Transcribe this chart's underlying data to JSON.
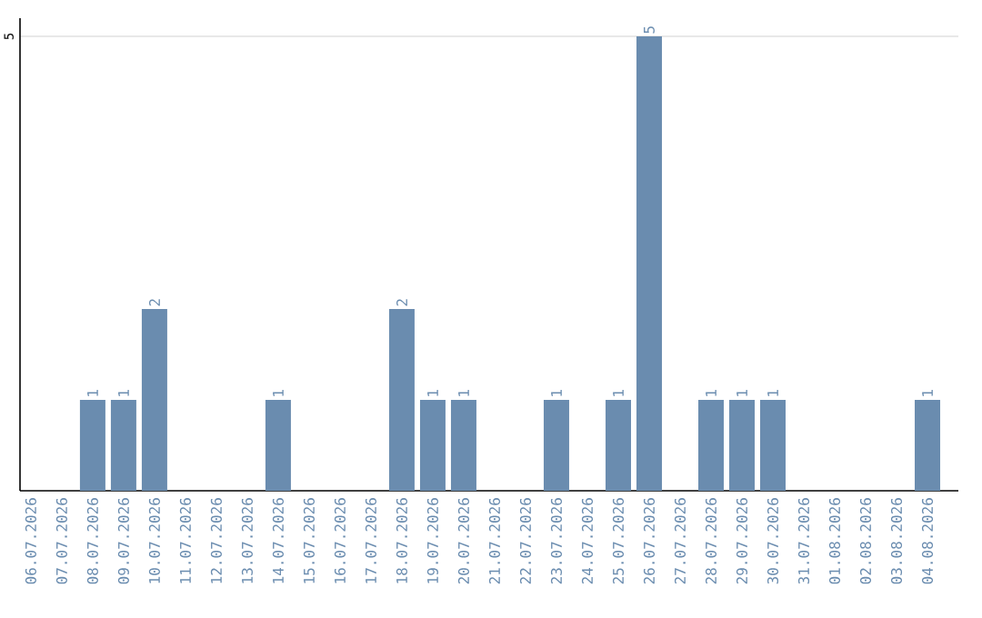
{
  "chart_data": {
    "type": "bar",
    "categories": [
      "06.07.2026",
      "07.07.2026",
      "08.07.2026",
      "09.07.2026",
      "10.07.2026",
      "11.07.2026",
      "12.07.2026",
      "13.07.2026",
      "14.07.2026",
      "15.07.2026",
      "16.07.2026",
      "17.07.2026",
      "18.07.2026",
      "19.07.2026",
      "20.07.2026",
      "21.07.2026",
      "22.07.2026",
      "23.07.2026",
      "24.07.2026",
      "25.07.2026",
      "26.07.2026",
      "27.07.2026",
      "28.07.2026",
      "29.07.2026",
      "30.07.2026",
      "31.07.2026",
      "01.08.2026",
      "02.08.2026",
      "03.08.2026",
      "04.08.2026"
    ],
    "values": [
      0,
      0,
      1,
      1,
      2,
      0,
      0,
      0,
      1,
      0,
      0,
      0,
      2,
      1,
      1,
      0,
      0,
      1,
      0,
      1,
      5,
      0,
      1,
      1,
      1,
      0,
      0,
      0,
      0,
      1
    ],
    "value_labels": [
      null,
      null,
      "1",
      "1",
      "2",
      null,
      null,
      null,
      "1",
      null,
      null,
      null,
      "2",
      "1",
      "1",
      null,
      null,
      "1",
      null,
      "1",
      "5",
      null,
      "1",
      "1",
      "1",
      null,
      null,
      null,
      null,
      "1"
    ],
    "color": "#6a8caf",
    "ylim": [
      0,
      5.2
    ],
    "yticks": [
      5
    ],
    "grid": "y"
  }
}
